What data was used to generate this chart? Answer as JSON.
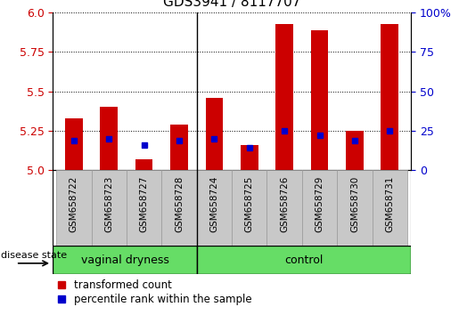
{
  "title": "GDS3941 / 8117707",
  "samples": [
    "GSM658722",
    "GSM658723",
    "GSM658727",
    "GSM658728",
    "GSM658724",
    "GSM658725",
    "GSM658726",
    "GSM658729",
    "GSM658730",
    "GSM658731"
  ],
  "red_values": [
    5.33,
    5.4,
    5.07,
    5.29,
    5.46,
    5.16,
    5.93,
    5.89,
    5.25,
    5.93
  ],
  "blue_values": [
    5.19,
    5.2,
    5.16,
    5.19,
    5.2,
    5.14,
    5.25,
    5.22,
    5.19,
    5.25
  ],
  "ymin": 5.0,
  "ymax": 6.0,
  "yticks_left": [
    5.0,
    5.25,
    5.5,
    5.75,
    6.0
  ],
  "yticks_right_vals": [
    0,
    25,
    50,
    75,
    100
  ],
  "group_boundary": 4,
  "bar_width": 0.5,
  "red_color": "#CC0000",
  "blue_color": "#0000CC",
  "blue_marker_size": 5,
  "tick_bg_color": "#C8C8C8",
  "grid_color": "#000000",
  "legend_red": "transformed count",
  "legend_blue": "percentile rank within the sample",
  "disease_state_label": "disease state",
  "ylabel_left_color": "#CC0000",
  "ylabel_right_color": "#0000CC",
  "green_color": "#66DD66"
}
